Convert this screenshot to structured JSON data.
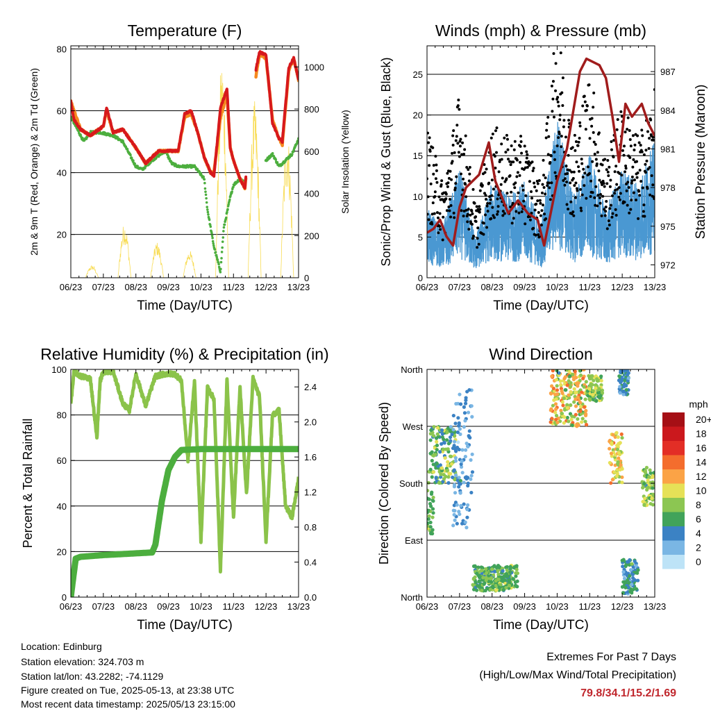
{
  "colors": {
    "temp_2m": "#d7191c",
    "temp_9m": "#f58a1f",
    "dewpoint": "#4cae3e",
    "solar": "#f8dc55",
    "sonic_wind": "#4a98d2",
    "gust": "#000000",
    "pressure": "#a01c1c",
    "rh": "#8bc34a",
    "precip": "#4cae3e"
  },
  "wind_speed_scale": {
    "unit": "mph",
    "labels": [
      "20+",
      "18",
      "16",
      "14",
      "12",
      "10",
      "8",
      "6",
      "4",
      "2",
      "0"
    ],
    "colors": [
      "#a50f15",
      "#cb181d",
      "#e32e26",
      "#f46d2d",
      "#fba346",
      "#e6e157",
      "#8cc652",
      "#41a35a",
      "#3b82c4",
      "#7ab6e4",
      "#bde3f7"
    ]
  },
  "footer": {
    "location": "Location: Edinburg",
    "elevation": "Station elevation: 324.703 m",
    "latlon": "Station lat/lon: 43.2282; -74.1129",
    "created": "Figure created on Tue, 2025-05-13, at 23:38 UTC",
    "recent": "Most recent data timestamp: 2025/05/13 23:15:00"
  },
  "extremes": {
    "title": "Extremes For Past 7 Days",
    "subtitle": "(High/Low/Max Wind/Total Precipitation)",
    "values": "79.8/34.1/15.2/1.69"
  },
  "chart_data": [
    {
      "id": "temperature",
      "type": "line",
      "title": "Temperature (F)",
      "xlabel": "Time (Day/UTC)",
      "ylabel": "2m & 9m T (Red, Orange) & 2m Td (Green)",
      "y2label": "Solar Insolation (Yellow)",
      "x_ticks": [
        "06/23",
        "07/23",
        "08/23",
        "09/23",
        "10/23",
        "11/23",
        "12/23",
        "13/23"
      ],
      "xlim": [
        6,
        13
      ],
      "ylim": [
        6,
        81
      ],
      "y_ticks": [
        20,
        40,
        60,
        80
      ],
      "y2lim": [
        0,
        1100
      ],
      "y2_ticks": [
        0,
        200,
        400,
        600,
        800,
        1000
      ],
      "grid": true,
      "series": [
        {
          "key": "temp_2m",
          "x": [
            6.0,
            6.1,
            6.3,
            6.6,
            7.0,
            7.1,
            7.3,
            7.6,
            8.0,
            8.3,
            8.7,
            9.0,
            9.3,
            9.5,
            9.7,
            9.9,
            10.1,
            10.3,
            10.4,
            10.6,
            10.8,
            10.9,
            11.0,
            11.2,
            11.35,
            11.7,
            11.8,
            12.0,
            12.2,
            12.4,
            12.5,
            12.6,
            12.7,
            12.85,
            13.0
          ],
          "y": [
            63,
            57,
            54,
            52,
            55,
            61,
            53,
            54,
            48,
            43,
            47,
            47,
            47,
            59,
            60,
            53,
            45,
            40,
            39,
            61,
            67,
            48,
            44,
            38,
            35,
            74,
            79,
            78,
            56,
            51,
            50,
            62,
            74,
            77,
            70
          ]
        },
        {
          "key": "temp_9m",
          "x": [
            6.0,
            6.3,
            6.6,
            7.0,
            7.1,
            7.3,
            7.6,
            8.0,
            8.3,
            8.7,
            9.0,
            9.3,
            9.5,
            9.7,
            9.9,
            10.1,
            10.3,
            10.4,
            10.6,
            10.8,
            10.9,
            11.0,
            11.2,
            11.35,
            11.7,
            11.8,
            12.0,
            12.2,
            12.4,
            12.5,
            12.6,
            12.7,
            12.85,
            13.0
          ],
          "y": [
            63,
            54,
            52,
            55,
            60,
            53,
            54,
            48,
            43,
            47,
            47,
            47,
            58,
            59,
            53,
            45,
            40,
            40,
            58,
            65,
            48,
            44,
            38,
            35,
            72,
            78,
            77,
            57,
            51,
            49,
            61,
            73,
            77,
            70
          ]
        },
        {
          "key": "dewpoint",
          "x": [
            6.0,
            6.1,
            6.4,
            6.6,
            6.9,
            7.3,
            7.6,
            8.0,
            8.2,
            8.5,
            8.9,
            9.1,
            9.3,
            9.6,
            9.8,
            10.1,
            10.2,
            10.4,
            10.6,
            10.7,
            10.9,
            11.0,
            11.2,
            11.35,
            12.0,
            12.2,
            12.4,
            12.6,
            12.8,
            13.0
          ],
          "y": [
            58,
            56,
            50,
            53,
            53,
            52,
            50,
            42,
            41,
            44,
            47,
            43,
            42,
            42,
            42,
            38,
            28,
            16,
            8,
            22,
            32,
            36,
            38,
            37,
            44,
            46,
            42,
            44,
            46,
            51
          ]
        }
      ]
    },
    {
      "id": "winds",
      "type": "scatter",
      "title": "Winds (mph) & Pressure (mb)",
      "xlabel": "Time (Day/UTC)",
      "ylabel": "Sonic/Prop Wind & Gust (Blue, Black)",
      "y2label": "Station Pressure (Maroon)",
      "x_ticks": [
        "06/23",
        "07/23",
        "08/23",
        "09/23",
        "10/23",
        "11/23",
        "12/23",
        "13/23"
      ],
      "xlim": [
        6,
        13
      ],
      "ylim": [
        0,
        28.5
      ],
      "y_ticks": [
        0,
        5,
        10,
        15,
        20,
        25
      ],
      "y2lim": [
        971,
        989
      ],
      "y2_ticks": [
        972,
        975,
        978,
        981,
        984,
        987
      ],
      "grid": true,
      "series": [
        {
          "key": "pressure",
          "name": "",
          "x": [
            6.0,
            6.2,
            6.4,
            6.6,
            6.8,
            7.0,
            7.2,
            7.6,
            7.9,
            8.1,
            8.5,
            8.8,
            9.1,
            9.4,
            9.6,
            9.8,
            10.0,
            10.3,
            10.7,
            10.9,
            11.3,
            11.5,
            11.7,
            11.9,
            12.1,
            12.3,
            12.6,
            12.8,
            13.0
          ],
          "y": [
            974.5,
            974.8,
            975.5,
            974.2,
            973.5,
            976.5,
            978,
            979,
            981.5,
            978.5,
            976,
            977,
            976,
            975.5,
            973.5,
            976,
            978.5,
            981,
            987,
            988,
            987.5,
            986.5,
            983.5,
            980,
            984.5,
            983.5,
            984.5,
            983,
            982
          ]
        },
        {
          "key": "sonic_wind",
          "name": "",
          "x": [
            6.0,
            6.5,
            7.0,
            7.5,
            8.0,
            8.5,
            9.0,
            9.5,
            10.0,
            10.5,
            11.0,
            11.5,
            12.0,
            12.5,
            13.0
          ],
          "y": [
            5,
            4,
            8,
            3,
            7,
            6,
            7,
            4,
            12,
            6,
            9,
            5,
            8,
            7,
            10
          ]
        },
        {
          "key": "gust",
          "name": "",
          "x": [
            6.0,
            6.5,
            7.0,
            7.5,
            8.0,
            8.5,
            9.0,
            9.5,
            10.0,
            10.5,
            11.0,
            11.5,
            12.0,
            12.5,
            13.0
          ],
          "y": [
            13,
            8,
            16,
            6,
            13,
            12,
            12,
            8,
            22,
            12,
            18,
            10,
            15,
            12,
            16
          ]
        }
      ]
    },
    {
      "id": "rh_precip",
      "type": "line",
      "title": "Relative Humidity (%) & Precipitation (in)",
      "xlabel": "Time (Day/UTC)",
      "ylabel": "Percent & Total Rainfall",
      "x_ticks": [
        "06/23",
        "07/23",
        "08/23",
        "09/23",
        "10/23",
        "11/23",
        "12/23",
        "13/23"
      ],
      "xlim": [
        6,
        13
      ],
      "ylim": [
        0,
        100
      ],
      "y_ticks": [
        0,
        20,
        40,
        60,
        80,
        100
      ],
      "y2lim": [
        0,
        2.6
      ],
      "y2_ticks": [
        "0.0",
        "0.4",
        "0.8",
        "1.2",
        "1.6",
        "2.0",
        "2.4"
      ],
      "grid": true,
      "series": [
        {
          "key": "rh",
          "name": "",
          "x": [
            6.0,
            6.1,
            6.3,
            6.6,
            6.8,
            6.9,
            7.0,
            7.3,
            7.6,
            7.8,
            8.0,
            8.3,
            8.6,
            8.9,
            9.2,
            9.4,
            9.6,
            9.8,
            10.0,
            10.2,
            10.4,
            10.6,
            10.8,
            11.0,
            11.2,
            11.4,
            11.6,
            11.8,
            12.0,
            12.2,
            12.4,
            12.6,
            12.8,
            13.0
          ],
          "y": [
            85,
            99,
            97,
            96,
            70,
            95,
            99,
            99,
            85,
            82,
            98,
            84,
            97,
            98,
            98,
            95,
            60,
            95,
            25,
            92,
            87,
            12,
            95,
            35,
            92,
            45,
            96,
            88,
            25,
            80,
            82,
            40,
            35,
            52
          ]
        },
        {
          "key": "precip",
          "name": "",
          "x": [
            6.0,
            6.05,
            6.15,
            6.3,
            7.0,
            7.5,
            8.0,
            8.5,
            8.6,
            8.8,
            9.0,
            9.2,
            9.4,
            10.0,
            11.0,
            12.0,
            13.0
          ],
          "y": [
            0.0,
            0.15,
            0.44,
            0.46,
            0.48,
            0.49,
            0.5,
            0.51,
            0.6,
            1.1,
            1.45,
            1.6,
            1.68,
            1.69,
            1.69,
            1.69,
            1.69
          ]
        }
      ]
    },
    {
      "id": "wind_direction",
      "type": "scatter",
      "title": "Wind Direction",
      "xlabel": "Time (Day/UTC)",
      "ylabel": "Direction (Colored By Speed)",
      "x_ticks": [
        "06/23",
        "07/23",
        "08/23",
        "09/23",
        "10/23",
        "11/23",
        "12/23",
        "13/23"
      ],
      "xlim": [
        6,
        13
      ],
      "ylim": [
        0,
        360
      ],
      "y_tick_values": [
        0,
        90,
        180,
        270,
        360
      ],
      "y_tick_labels": [
        "North",
        "East",
        "South",
        "West",
        "North"
      ],
      "grid": true,
      "clusters": [
        {
          "x": [
            6.0,
            6.2
          ],
          "dir": [
            100,
            200
          ],
          "speed": [
            6,
            8
          ]
        },
        {
          "x": [
            6.1,
            6.9
          ],
          "dir": [
            180,
            270
          ],
          "speed": [
            4,
            9
          ]
        },
        {
          "x": [
            6.8,
            7.4
          ],
          "dir": [
            110,
            330
          ],
          "speed": [
            2,
            4
          ]
        },
        {
          "x": [
            7.4,
            8.8
          ],
          "dir": [
            10,
            50
          ],
          "speed": [
            5,
            8
          ]
        },
        {
          "x": [
            9.8,
            10.9
          ],
          "dir": [
            270,
            360
          ],
          "speed": [
            6,
            14
          ]
        },
        {
          "x": [
            10.9,
            11.4
          ],
          "dir": [
            310,
            350
          ],
          "speed": [
            6,
            10
          ]
        },
        {
          "x": [
            11.6,
            12.0
          ],
          "dir": [
            180,
            260
          ],
          "speed": [
            8,
            13
          ]
        },
        {
          "x": [
            11.9,
            12.2
          ],
          "dir": [
            320,
            360
          ],
          "speed": [
            3,
            6
          ]
        },
        {
          "x": [
            12.0,
            12.5
          ],
          "dir": [
            5,
            60
          ],
          "speed": [
            3,
            6
          ]
        },
        {
          "x": [
            12.6,
            13.0
          ],
          "dir": [
            145,
            205
          ],
          "speed": [
            6,
            10
          ]
        }
      ]
    }
  ]
}
